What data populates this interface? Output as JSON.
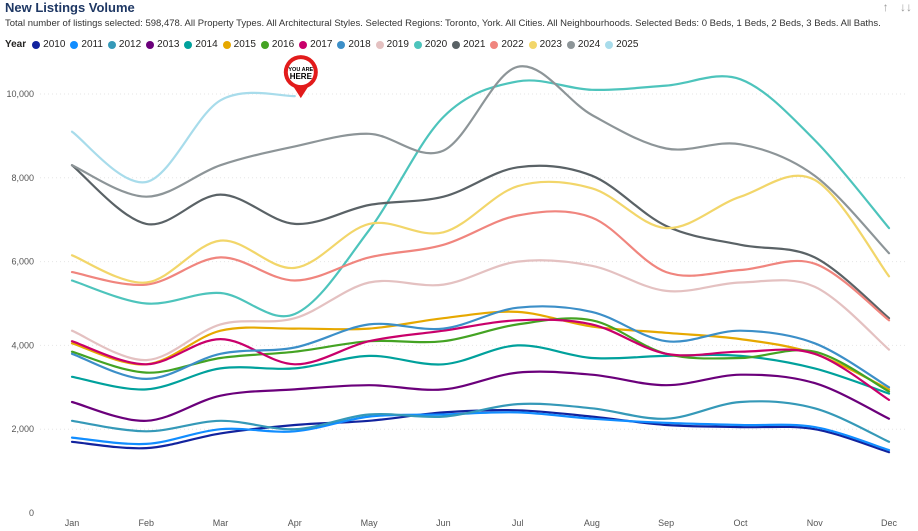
{
  "header": {
    "title": "New Listings Volume",
    "subtitle": "Total number of listings selected: 598,478. All Property Types. All Architectural Styles. Selected Regions: Toronto, York. All Cities. All Neighbourhoods. Selected Beds: 0 Beds, 1 Beds, 2 Beds, 3 Beds. All Baths.",
    "icons": [
      "sort-up-icon",
      "sort-descending-icon"
    ]
  },
  "marker": {
    "line1": "YOU ARE",
    "line2": "HERE"
  },
  "chart_data": {
    "type": "line",
    "title": "New Listings Volume",
    "legend_title": "Year",
    "legend_position": "top-left",
    "xlabel": "",
    "ylabel": "",
    "ylim": [
      0,
      11000
    ],
    "y_ticks": [
      0,
      2000,
      4000,
      6000,
      8000,
      10000
    ],
    "y_tick_labels": [
      "0",
      "2,000",
      "4,000",
      "6,000",
      "8,000",
      "10,000"
    ],
    "grid": true,
    "categories": [
      "Jan",
      "Feb",
      "Mar",
      "Apr",
      "May",
      "Jun",
      "Jul",
      "Aug",
      "Sep",
      "Oct",
      "Nov",
      "Dec"
    ],
    "series": [
      {
        "name": "2010",
        "color": "#12239E",
        "values": [
          1700,
          1550,
          1900,
          2100,
          2200,
          2400,
          2450,
          2300,
          2100,
          2050,
          2000,
          1450
        ]
      },
      {
        "name": "2011",
        "color": "#118DFF",
        "values": [
          1800,
          1650,
          2000,
          1950,
          2300,
          2350,
          2400,
          2250,
          2150,
          2100,
          2050,
          1500
        ]
      },
      {
        "name": "2012",
        "color": "#3599B8",
        "values": [
          2200,
          1950,
          2200,
          2000,
          2350,
          2300,
          2600,
          2500,
          2250,
          2650,
          2500,
          1700
        ]
      },
      {
        "name": "2013",
        "color": "#6B007B",
        "values": [
          2650,
          2200,
          2800,
          2950,
          3050,
          2950,
          3350,
          3300,
          3050,
          3300,
          3100,
          2250
        ]
      },
      {
        "name": "2014",
        "color": "#00A19C",
        "values": [
          3250,
          2950,
          3450,
          3450,
          3750,
          3550,
          4000,
          3700,
          3750,
          3750,
          3450,
          2850
        ]
      },
      {
        "name": "2015",
        "color": "#E6A800",
        "values": [
          4050,
          3550,
          4350,
          4400,
          4400,
          4650,
          4800,
          4450,
          4300,
          4150,
          3800,
          2950
        ]
      },
      {
        "name": "2016",
        "color": "#44A323",
        "values": [
          3850,
          3350,
          3700,
          3850,
          4100,
          4100,
          4500,
          4600,
          3800,
          3700,
          3850,
          2900
        ]
      },
      {
        "name": "2017",
        "color": "#C9006B",
        "values": [
          4100,
          3550,
          4150,
          3550,
          4100,
          4350,
          4600,
          4500,
          3800,
          3850,
          3800,
          2700
        ]
      },
      {
        "name": "2018",
        "color": "#3C8FC8",
        "values": [
          3800,
          3200,
          3800,
          3950,
          4500,
          4400,
          4900,
          4800,
          4100,
          4350,
          4050,
          3000
        ]
      },
      {
        "name": "2019",
        "color": "#E4C1C1",
        "values": [
          4350,
          3650,
          4500,
          4650,
          5500,
          5450,
          6000,
          5900,
          5300,
          5500,
          5400,
          3900
        ]
      },
      {
        "name": "2020",
        "color": "#4DC4BC",
        "values": [
          5550,
          5000,
          5250,
          4750,
          6750,
          9450,
          10300,
          10100,
          10200,
          10350,
          8900,
          6800
        ]
      },
      {
        "name": "2021",
        "color": "#5A6266",
        "values": [
          8300,
          6900,
          7600,
          6900,
          7350,
          7550,
          8250,
          8050,
          6850,
          6400,
          6100,
          4650
        ]
      },
      {
        "name": "2022",
        "color": "#F0857E",
        "values": [
          5750,
          5450,
          6100,
          5550,
          6100,
          6400,
          7100,
          7050,
          5750,
          5800,
          5950,
          4600
        ]
      },
      {
        "name": "2023",
        "color": "#F2D66A",
        "values": [
          6150,
          5500,
          6500,
          5850,
          6900,
          6700,
          7800,
          7750,
          6800,
          7550,
          7950,
          5650
        ]
      },
      {
        "name": "2024",
        "color": "#8D9598",
        "values": [
          8300,
          7550,
          8300,
          8750,
          9050,
          8650,
          10650,
          9500,
          8700,
          8800,
          8050,
          6200
        ]
      },
      {
        "name": "2025",
        "color": "#A8DCEB",
        "values": [
          9100,
          7900,
          9850,
          9950,
          null,
          null,
          null,
          null,
          null,
          null,
          null,
          null
        ]
      }
    ]
  }
}
